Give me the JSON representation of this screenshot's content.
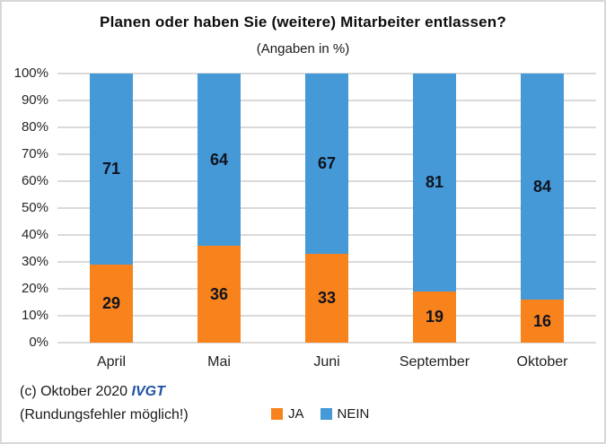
{
  "title": "Planen oder haben Sie (weitere) Mitarbeiter entlassen?",
  "subtitle": "(Angaben in %)",
  "chart_data": {
    "type": "bar",
    "stacked": true,
    "categories": [
      "April",
      "Mai",
      "Juni",
      "September",
      "Oktober"
    ],
    "series": [
      {
        "name": "JA",
        "color": "#f8831c",
        "values": [
          29,
          36,
          33,
          19,
          16
        ]
      },
      {
        "name": "NEIN",
        "color": "#4599d6",
        "values": [
          71,
          64,
          67,
          81,
          84
        ]
      }
    ],
    "ylim": [
      0,
      100
    ],
    "ytick_step": 10,
    "yticks_top_to_bottom": [
      "100%",
      "90%",
      "80%",
      "70%",
      "60%",
      "50%",
      "40%",
      "30%",
      "20%",
      "10%",
      "0%"
    ],
    "grid": true,
    "grid_color": "#dadada",
    "legend_position": "bottom",
    "data_labels": true
  },
  "footer": {
    "copyright_prefix": "(c) Oktober 2020 ",
    "org": "IVGT",
    "org_color": "#2051a3",
    "note": "(Rundungsfehler möglich!)"
  }
}
